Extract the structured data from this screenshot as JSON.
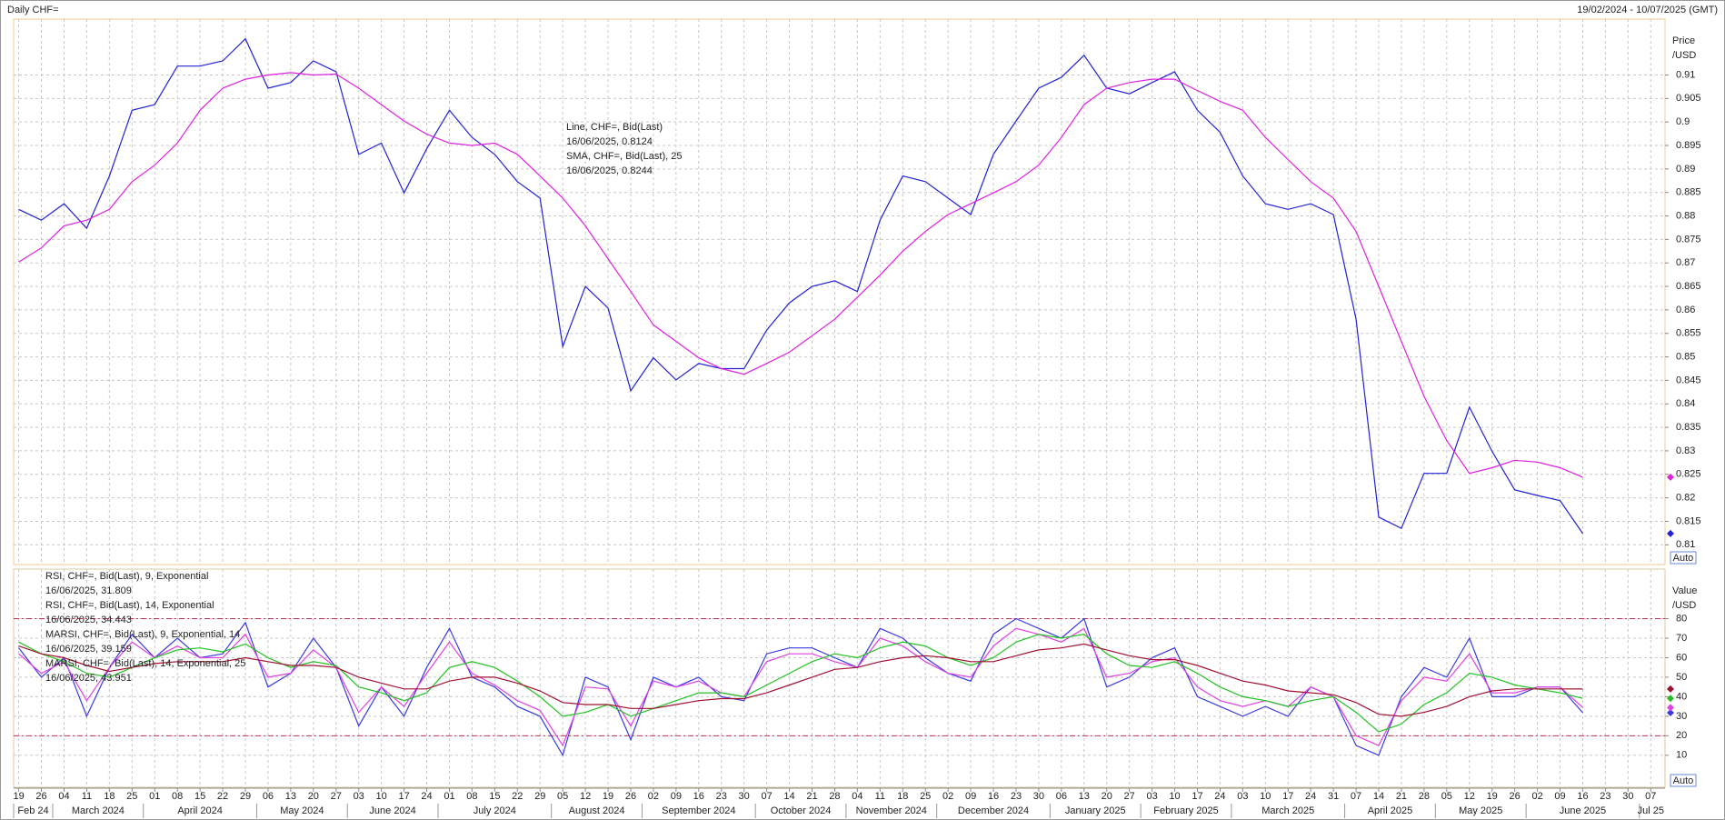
{
  "header": {
    "title": "Daily CHF=",
    "range": "19/02/2024 - 10/07/2025 (GMT)"
  },
  "chart_data": [
    {
      "type": "line",
      "ylabel_lines": [
        "Price",
        "/USD"
      ],
      "auto_label": "Auto",
      "ylim": [
        0.8058,
        0.9219
      ],
      "yticks": [
        0.81,
        0.815,
        0.82,
        0.825,
        0.83,
        0.835,
        0.84,
        0.845,
        0.85,
        0.855,
        0.86,
        0.865,
        0.87,
        0.875,
        0.88,
        0.885,
        0.89,
        0.895,
        0.9,
        0.905,
        0.91
      ],
      "grid": true,
      "series": [
        {
          "name": "Line, CHF=, Bid(Last)",
          "last_label": "16/06/2025, 0.8124",
          "color": "#2222d4",
          "values": [
            0.8814,
            0.8791,
            0.8826,
            0.8774,
            0.8885,
            0.9025,
            0.9037,
            0.9119,
            0.9119,
            0.913,
            0.9177,
            0.9072,
            0.9084,
            0.913,
            0.9107,
            0.8931,
            0.8955,
            0.8849,
            0.8943,
            0.9025,
            0.8967,
            0.8931,
            0.8873,
            0.8838,
            0.8522,
            0.865,
            0.8604,
            0.8428,
            0.8498,
            0.8451,
            0.8486,
            0.8475,
            0.8475,
            0.8557,
            0.8615,
            0.865,
            0.8662,
            0.8639,
            0.8791,
            0.8885,
            0.8873,
            0.8838,
            0.8803,
            0.8931,
            0.9002,
            0.9072,
            0.9095,
            0.9142,
            0.9072,
            0.906,
            0.9084,
            0.9107,
            0.9025,
            0.8978,
            0.8885,
            0.8826,
            0.8814,
            0.8826,
            0.8803,
            0.858,
            0.8159,
            0.8135,
            0.8252,
            0.8252,
            0.8393,
            0.8299,
            0.8217,
            0.8205,
            0.8194,
            0.8124,
            null,
            null,
            null
          ]
        },
        {
          "name": "SMA, CHF=, Bid(Last),  25",
          "last_label": "16/06/2025, 0.8244",
          "color": "#e020e0",
          "values": [
            0.8702,
            0.8732,
            0.8779,
            0.8791,
            0.8814,
            0.8873,
            0.8908,
            0.8955,
            0.9025,
            0.9072,
            0.9091,
            0.91,
            0.9105,
            0.91,
            0.9102,
            0.9072,
            0.9037,
            0.9002,
            0.8974,
            0.8955,
            0.895,
            0.8955,
            0.8931,
            0.8885,
            0.8838,
            0.8779,
            0.8709,
            0.8639,
            0.8568,
            0.8533,
            0.8498,
            0.8475,
            0.8463,
            0.8486,
            0.851,
            0.8545,
            0.858,
            0.8627,
            0.8674,
            0.8725,
            0.8767,
            0.8803,
            0.8826,
            0.8849,
            0.8873,
            0.8908,
            0.8967,
            0.9037,
            0.9072,
            0.9084,
            0.9091,
            0.9091,
            0.9067,
            0.9044,
            0.9025,
            0.8967,
            0.892,
            0.8873,
            0.8838,
            0.8767,
            0.865,
            0.8533,
            0.8416,
            0.8322,
            0.8252,
            0.8264,
            0.828,
            0.8276,
            0.8264,
            0.8244,
            null,
            null,
            null
          ]
        }
      ]
    },
    {
      "type": "line",
      "ylabel_lines": [
        "Value",
        "/USD"
      ],
      "auto_label": "Auto",
      "ylim": [
        -6.4,
        105.4
      ],
      "yticks": [
        10,
        20,
        30,
        40,
        50,
        60,
        70,
        80
      ],
      "grid": true,
      "hlines": [
        80,
        20
      ],
      "hline_color": "#c03050",
      "categories": [
        "19",
        "26",
        "04",
        "11",
        "18",
        "25",
        "01",
        "08",
        "15",
        "22",
        "29",
        "06",
        "13",
        "20",
        "27",
        "03",
        "10",
        "17",
        "24",
        "01",
        "08",
        "15",
        "22",
        "29",
        "05",
        "12",
        "19",
        "26",
        "02",
        "09",
        "16",
        "23",
        "30",
        "07",
        "14",
        "21",
        "28",
        "04",
        "11",
        "18",
        "25",
        "02",
        "09",
        "16",
        "23",
        "30",
        "06",
        "13",
        "20",
        "27",
        "03",
        "10",
        "17",
        "24",
        "03",
        "10",
        "17",
        "24",
        "31",
        "07",
        "14",
        "21",
        "28",
        "05",
        "12",
        "19",
        "26",
        "02",
        "09",
        "16",
        "23",
        "30",
        "07"
      ],
      "month_labels": [
        "Feb 24",
        null,
        "March 2024",
        null,
        null,
        null,
        "April 2024",
        null,
        null,
        null,
        null,
        "May 2024",
        null,
        null,
        null,
        "June 2024",
        null,
        null,
        null,
        "July 2024",
        null,
        null,
        null,
        null,
        "August 2024",
        null,
        null,
        null,
        "September 2024",
        null,
        null,
        null,
        null,
        "October 2024",
        null,
        null,
        null,
        "November 2024",
        null,
        null,
        null,
        "December 2024",
        null,
        null,
        null,
        null,
        "January 2025",
        null,
        null,
        null,
        "February 2025",
        null,
        null,
        null,
        "March 2025",
        null,
        null,
        null,
        null,
        "April 2025",
        null,
        null,
        null,
        "May 2025",
        null,
        null,
        null,
        "June 2025",
        null,
        null,
        null,
        null,
        "Jul 25"
      ],
      "series": [
        {
          "name": "RSI, CHF=, Bid(Last),  9, Exponential",
          "last_label": "16/06/2025, 31.809",
          "color": "#3a3ae0",
          "values": [
            65,
            50,
            60,
            30,
            55,
            72,
            60,
            70,
            60,
            62,
            78,
            45,
            52,
            70,
            55,
            25,
            45,
            30,
            55,
            75,
            50,
            45,
            35,
            30,
            10,
            50,
            45,
            18,
            50,
            45,
            50,
            40,
            38,
            62,
            65,
            65,
            60,
            55,
            75,
            70,
            60,
            52,
            48,
            72,
            80,
            75,
            70,
            80,
            45,
            50,
            60,
            65,
            40,
            35,
            30,
            35,
            30,
            45,
            40,
            15,
            10,
            40,
            55,
            50,
            70,
            40,
            40,
            45,
            45,
            31.809,
            null,
            null,
            null
          ]
        },
        {
          "name": "RSI, CHF=, Bid(Last),  14, Exponential",
          "last_label": "16/06/2025, 34.443",
          "color": "#e040e0",
          "values": [
            62,
            52,
            58,
            38,
            55,
            68,
            60,
            66,
            60,
            60,
            72,
            50,
            52,
            64,
            55,
            32,
            45,
            35,
            52,
            68,
            52,
            46,
            38,
            33,
            15,
            45,
            44,
            25,
            48,
            45,
            48,
            42,
            40,
            58,
            62,
            62,
            58,
            55,
            70,
            66,
            58,
            52,
            50,
            66,
            75,
            72,
            68,
            75,
            50,
            52,
            58,
            60,
            45,
            38,
            35,
            38,
            35,
            45,
            40,
            20,
            15,
            38,
            50,
            48,
            62,
            42,
            42,
            45,
            45,
            34.443,
            null,
            null,
            null
          ]
        },
        {
          "name": "MARSI, CHF=, Bid(Last),  9, Exponential, 14",
          "last_label": "16/06/2025, 39.159",
          "color": "#22c022",
          "values": [
            68,
            62,
            58,
            52,
            50,
            55,
            60,
            64,
            65,
            63,
            67,
            60,
            55,
            58,
            56,
            45,
            42,
            38,
            42,
            55,
            58,
            55,
            48,
            40,
            30,
            32,
            36,
            30,
            34,
            38,
            42,
            42,
            40,
            46,
            52,
            58,
            62,
            60,
            65,
            68,
            66,
            60,
            56,
            60,
            68,
            72,
            70,
            72,
            62,
            56,
            55,
            58,
            52,
            45,
            40,
            38,
            35,
            38,
            40,
            32,
            22,
            26,
            36,
            42,
            52,
            50,
            46,
            44,
            42,
            39.159,
            null,
            null,
            null
          ]
        },
        {
          "name": "MARSI, CHF=, Bid(Last),  14, Exponential, 25",
          "last_label": "16/06/2025, 43.951",
          "color": "#a01030",
          "values": [
            66,
            62,
            60,
            56,
            53,
            55,
            57,
            58,
            58,
            58,
            60,
            58,
            56,
            56,
            55,
            50,
            47,
            44,
            44,
            48,
            50,
            50,
            47,
            43,
            37,
            36,
            36,
            34,
            34,
            36,
            38,
            39,
            39,
            42,
            46,
            50,
            54,
            55,
            58,
            60,
            61,
            60,
            58,
            58,
            61,
            64,
            65,
            67,
            64,
            61,
            59,
            59,
            56,
            52,
            48,
            46,
            43,
            42,
            41,
            37,
            31,
            30,
            32,
            35,
            40,
            43,
            44,
            44,
            44,
            43.951,
            null,
            null,
            null
          ]
        }
      ]
    }
  ]
}
